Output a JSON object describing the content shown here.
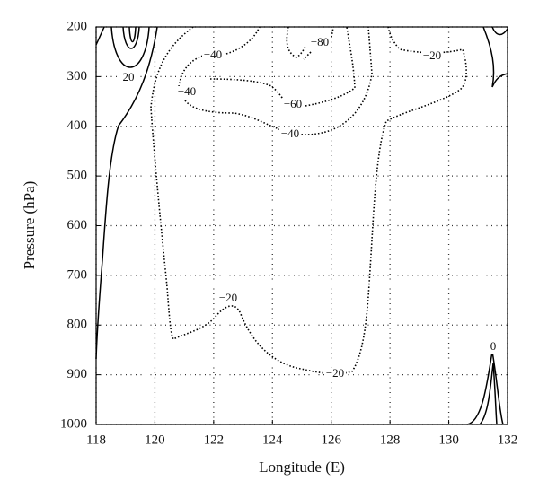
{
  "chart_data": {
    "type": "contour",
    "xlabel": "Longitude (E)",
    "ylabel": "Pressure (hPa)",
    "xlim": [
      118,
      132
    ],
    "xticks": [
      118,
      120,
      122,
      124,
      126,
      128,
      130,
      132
    ],
    "ylim": [
      1000,
      200
    ],
    "yticks": [
      200,
      300,
      400,
      500,
      600,
      700,
      800,
      900,
      1000
    ],
    "grid": true,
    "contour_labels": [
      "20",
      "−40",
      "−80",
      "−20",
      "−40",
      "−60",
      "−40",
      "−20",
      "−20",
      "0"
    ]
  }
}
